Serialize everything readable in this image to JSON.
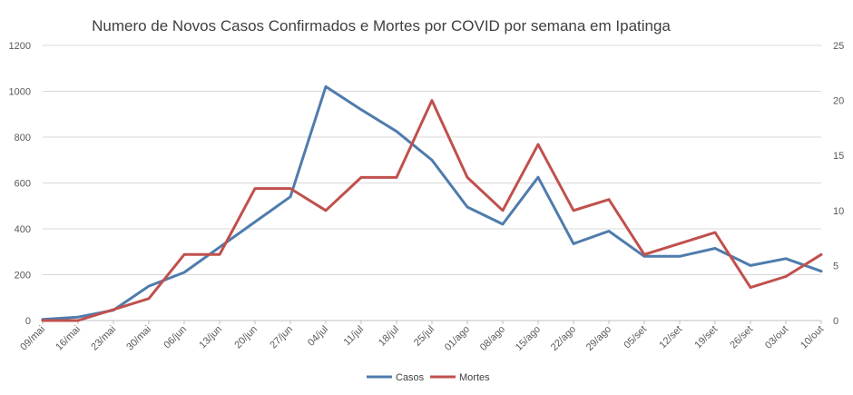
{
  "chart_data": {
    "type": "line",
    "title": "Numero de Novos Casos Confirmados e Mortes por COVID por semana em Ipatinga",
    "categories": [
      "09/mai",
      "16/mai",
      "23/mai",
      "30/mai",
      "06/jun",
      "13/jun",
      "20/jun",
      "27/jun",
      "04/jul",
      "11/jul",
      "18/jul",
      "25/jul",
      "01/ago",
      "08/ago",
      "15/ago",
      "22/ago",
      "29/ago",
      "05/set",
      "12/set",
      "19/set",
      "26/set",
      "03/out",
      "10/out"
    ],
    "series": [
      {
        "name": "Casos",
        "axis": "left",
        "color": "#4f7cac",
        "values": [
          5,
          15,
          45,
          150,
          210,
          320,
          430,
          540,
          1020,
          920,
          825,
          700,
          495,
          420,
          625,
          335,
          390,
          280,
          280,
          315,
          240,
          270,
          215
        ]
      },
      {
        "name": "Mortes",
        "axis": "right",
        "color": "#c0504d",
        "values": [
          0,
          0,
          1,
          2,
          6,
          6,
          12,
          12,
          10,
          13,
          13,
          20,
          13,
          10,
          16,
          10,
          11,
          6,
          7,
          8,
          3,
          4,
          6
        ]
      }
    ],
    "y_left": {
      "min": 0,
      "max": 1200,
      "ticks": [
        "0",
        "200",
        "400",
        "600",
        "800",
        "1000",
        "1200"
      ]
    },
    "y_right": {
      "min": 0,
      "max": 25,
      "ticks": [
        "0",
        "5",
        "10",
        "15",
        "20",
        "25"
      ]
    },
    "grid": "horizontal",
    "legend_position": "bottom"
  }
}
